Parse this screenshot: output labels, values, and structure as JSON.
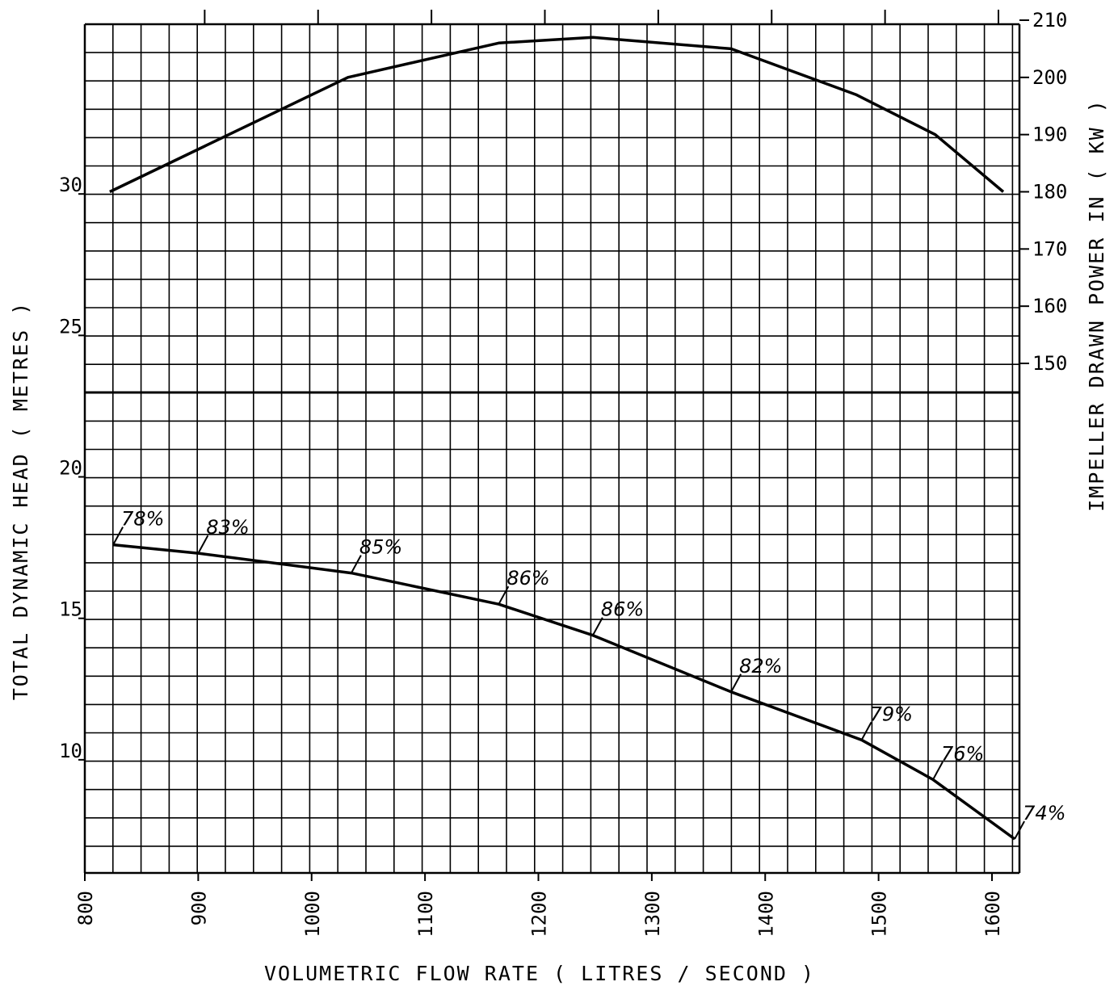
{
  "chart_data": {
    "type": "line",
    "title": "",
    "xlabel": "VOLUMETRIC FLOW RATE  ( LITRES / SECOND )",
    "ylabel_left": "TOTAL DYNAMIC HEAD ( METRES )",
    "ylabel_right": "IMPELLER DRAWN POWER IN ( KW )",
    "x_ticks": [
      "800",
      "900",
      "1000",
      "1100",
      "1200",
      "1300",
      "1400",
      "1500",
      "1600"
    ],
    "y_left_ticks": [
      "10",
      "15",
      "20",
      "25",
      "30"
    ],
    "y_right_ticks": [
      "150",
      "160",
      "170",
      "180",
      "190",
      "200",
      "210"
    ],
    "xlim": [
      800,
      1620
    ],
    "ylim_left": [
      6,
      36
    ],
    "ylim_right": [
      150,
      210
    ],
    "grid": true,
    "series": [
      {
        "axis": "right",
        "x": [
          822,
          1032,
          1165,
          1248,
          1370,
          1480,
          1550,
          1610
        ],
        "y": [
          180,
          200,
          206,
          207,
          205,
          197,
          190,
          180
        ]
      },
      {
        "axis": "left",
        "x": [
          825,
          900,
          1035,
          1165,
          1248,
          1370,
          1485,
          1548,
          1620
        ],
        "y": [
          17.6,
          17.3,
          16.6,
          15.5,
          14.4,
          12.4,
          10.7,
          9.3,
          7.2
        ],
        "point_labels": [
          "78%",
          "83%",
          "85%",
          "86%",
          "86%",
          "82%",
          "79%",
          "76%",
          "74%"
        ]
      }
    ]
  }
}
